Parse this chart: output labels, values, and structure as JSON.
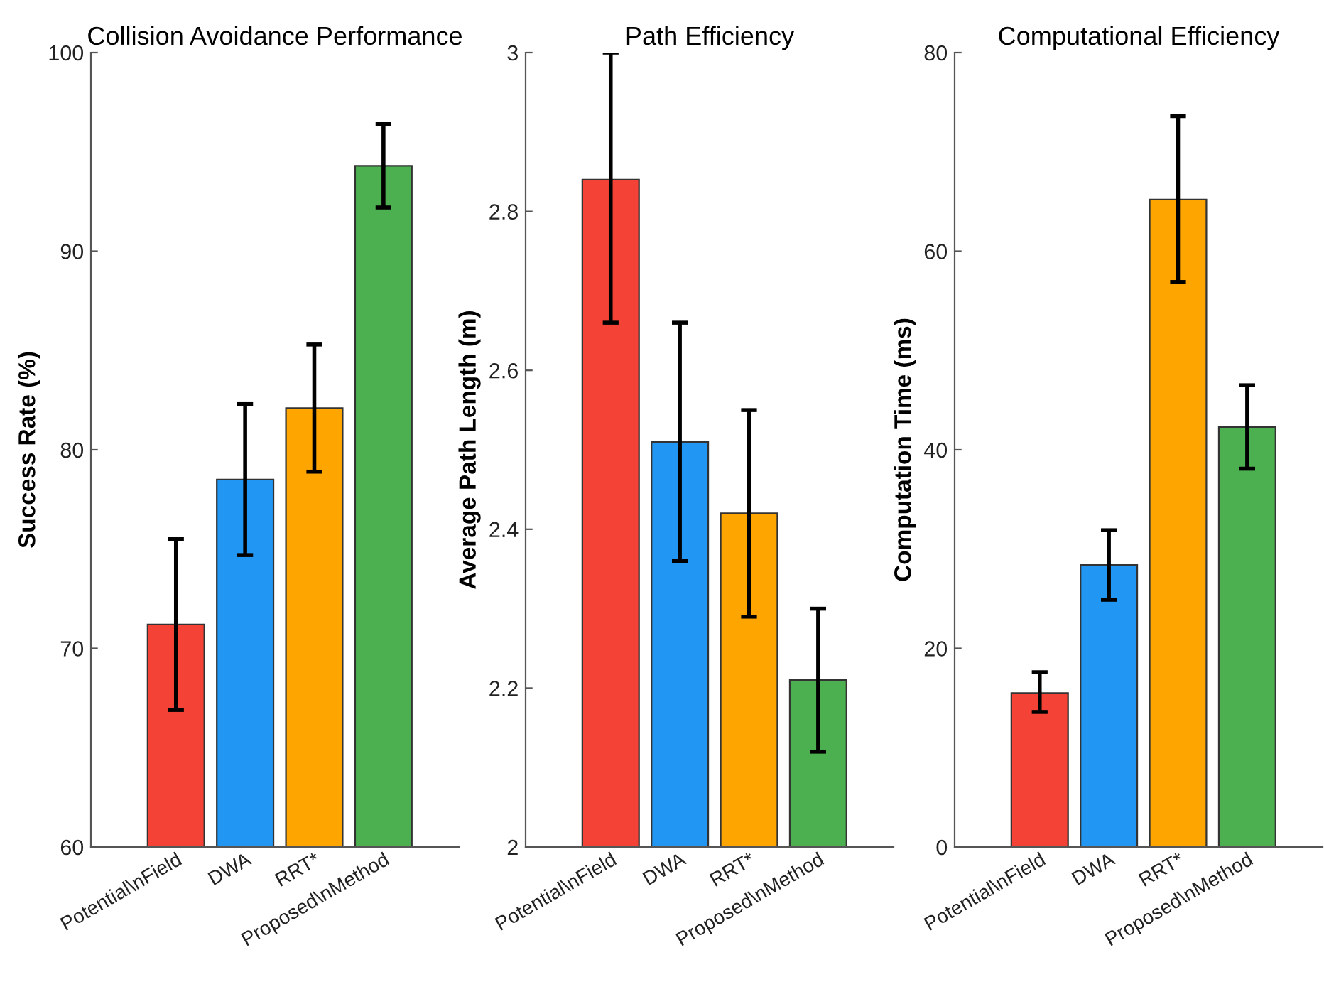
{
  "chart_data": [
    {
      "type": "bar",
      "title": "Collision Avoidance Performance",
      "ylabel": "Success Rate (%)",
      "categories": [
        "Potential\\nField",
        "DWA",
        "RRT*",
        "Proposed\\nMethod"
      ],
      "values": [
        71.2,
        78.5,
        82.1,
        94.3
      ],
      "colors": [
        "#f44336",
        "#2196f3",
        "#ffa500",
        "#4caf50"
      ],
      "errors": [
        [
          66.9,
          75.5
        ],
        [
          74.7,
          82.3
        ],
        [
          78.9,
          85.3
        ],
        [
          92.2,
          96.4
        ]
      ],
      "ylim": [
        60,
        100
      ],
      "yticks": [
        60,
        70,
        80,
        90,
        100
      ],
      "grid": false
    },
    {
      "type": "bar",
      "title": "Path Efficiency",
      "ylabel": "Average Path Length (m)",
      "categories": [
        "Potential\\nField",
        "DWA",
        "RRT*",
        "Proposed\\nMethod"
      ],
      "values": [
        2.84,
        2.51,
        2.42,
        2.21
      ],
      "colors": [
        "#f44336",
        "#2196f3",
        "#ffa500",
        "#4caf50"
      ],
      "errors": [
        [
          2.66,
          3.0
        ],
        [
          2.36,
          2.66
        ],
        [
          2.29,
          2.55
        ],
        [
          2.12,
          2.3
        ]
      ],
      "ylim": [
        2,
        3
      ],
      "yticks": [
        2,
        2.2,
        2.4,
        2.6,
        2.8,
        3
      ],
      "grid": false
    },
    {
      "type": "bar",
      "title": "Computational Efficiency",
      "ylabel": "Computation Time (ms)",
      "categories": [
        "Potential\\nField",
        "DWA",
        "RRT*",
        "Proposed\\nMethod"
      ],
      "values": [
        15.5,
        28.4,
        65.2,
        42.3
      ],
      "colors": [
        "#f44336",
        "#2196f3",
        "#ffa500",
        "#4caf50"
      ],
      "errors": [
        [
          13.6,
          17.6
        ],
        [
          24.9,
          31.9
        ],
        [
          56.9,
          73.6
        ],
        [
          38.1,
          46.5
        ]
      ],
      "ylim": [
        0,
        80
      ],
      "yticks": [
        0,
        20,
        40,
        60,
        80
      ],
      "grid": false
    }
  ]
}
